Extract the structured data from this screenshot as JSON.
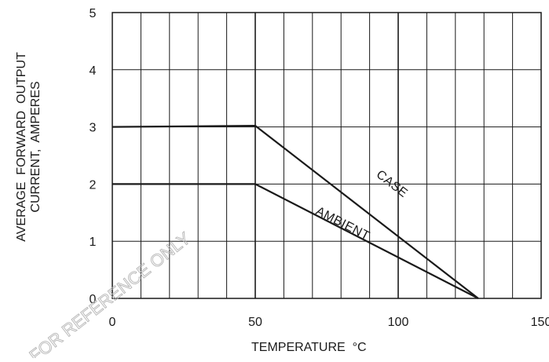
{
  "chart_data": {
    "type": "line",
    "title": "",
    "xlabel": "TEMPERATURE  °C",
    "ylabel_lines": [
      "AVERAGE  FORWARD  OUTPUT",
      "CURRENT,  AMPERES"
    ],
    "xlim": [
      0,
      150
    ],
    "ylim": [
      0,
      5
    ],
    "x_ticks": [
      0,
      50,
      100,
      150
    ],
    "y_ticks": [
      0,
      1,
      2,
      3,
      4,
      5
    ],
    "x_minor_step": 10,
    "y_minor_step": 1,
    "grid": true,
    "series": [
      {
        "name": "CASE",
        "color": "#1a1a1a",
        "points": [
          [
            0,
            3.0
          ],
          [
            50,
            3.02
          ],
          [
            128,
            0
          ]
        ]
      },
      {
        "name": "AMBIENT",
        "color": "#1a1a1a",
        "points": [
          [
            0,
            2.0
          ],
          [
            50,
            2.0
          ],
          [
            128,
            0
          ]
        ]
      }
    ]
  },
  "watermark": {
    "text": "FOR REFERENCE ONLY",
    "color": "#b5b5b5"
  }
}
